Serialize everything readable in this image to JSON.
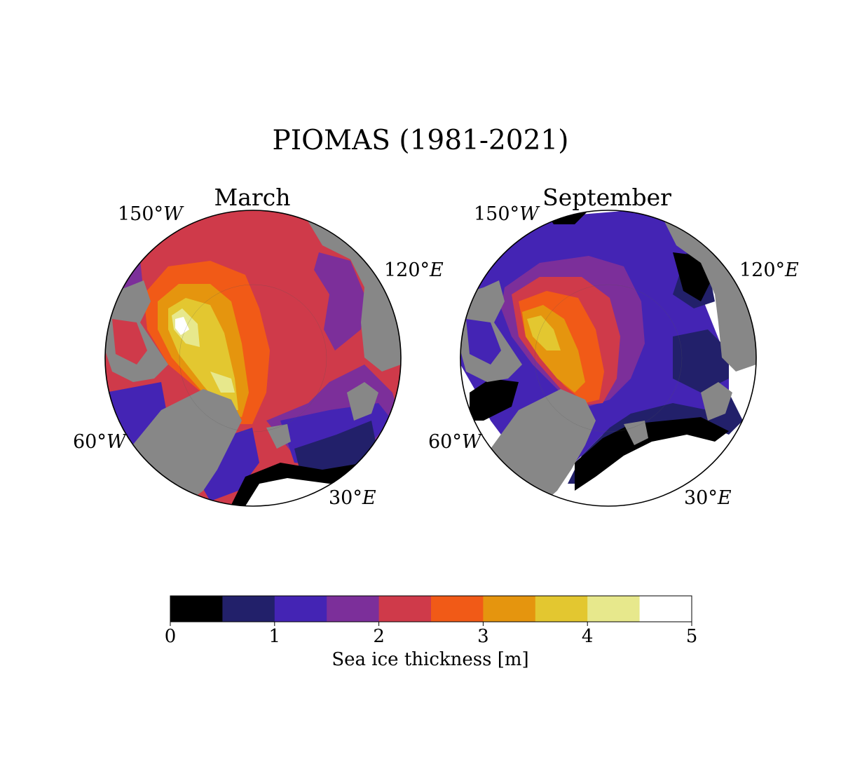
{
  "figure": {
    "title": "PIOMAS (1981-2021)"
  },
  "maps": [
    {
      "title": "March",
      "lon_labels": [
        {
          "deg": "150°",
          "dir": "W"
        },
        {
          "deg": "120°",
          "dir": "E"
        },
        {
          "deg": "60°",
          "dir": "W"
        },
        {
          "deg": "30°",
          "dir": "E"
        }
      ]
    },
    {
      "title": "September",
      "lon_labels": [
        {
          "deg": "150°",
          "dir": "W"
        },
        {
          "deg": "120°",
          "dir": "E"
        },
        {
          "deg": "60°",
          "dir": "W"
        },
        {
          "deg": "30°",
          "dir": "E"
        }
      ]
    }
  ],
  "colorbar": {
    "label": "Sea ice thickness [m]",
    "range": [
      0,
      5
    ],
    "bin_width": 0.5,
    "ticks": [
      "0",
      "1",
      "2",
      "3",
      "4",
      "5"
    ],
    "colors": [
      "#000000",
      "#22206a",
      "#4424b4",
      "#7c2f9a",
      "#cf3a4a",
      "#f15a17",
      "#e5950e",
      "#e3c730",
      "#e7e88c",
      "#ffffff"
    ]
  },
  "palette": {
    "land": "#878787",
    "ocean_open": "#ffffff"
  }
}
